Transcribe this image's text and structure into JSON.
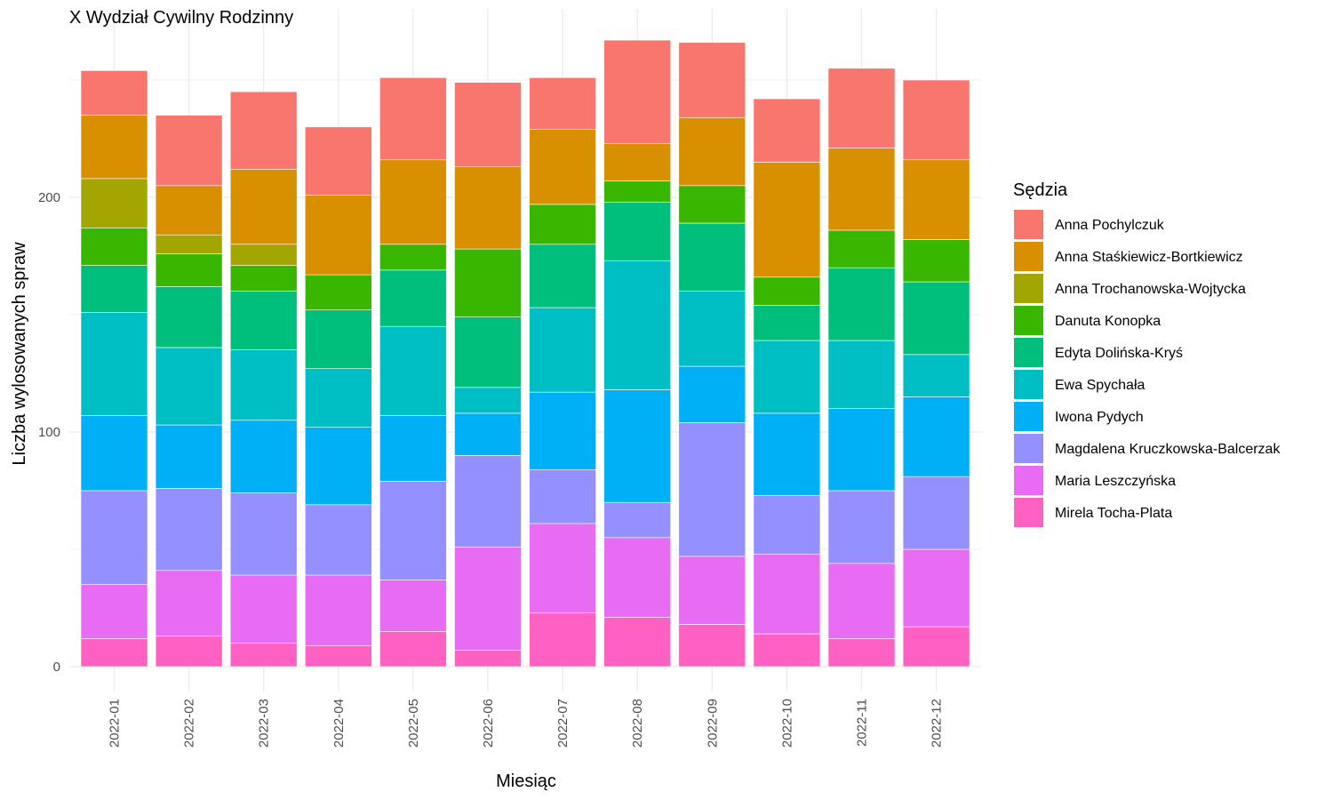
{
  "chart_data": {
    "type": "bar",
    "stacked": true,
    "title": "X Wydział Cywilny Rodzinny",
    "xlabel": "Miesiąc",
    "ylabel": "Liczba wylosowanych spraw",
    "ylim": [
      0,
      265
    ],
    "yticks": [
      0,
      100,
      200
    ],
    "grid": true,
    "legend_title": "Sędzia",
    "legend_position": "right",
    "categories": [
      "2022-01",
      "2022-02",
      "2022-03",
      "2022-04",
      "2022-05",
      "2022-06",
      "2022-07",
      "2022-08",
      "2022-09",
      "2022-10",
      "2022-11",
      "2022-12"
    ],
    "series": [
      {
        "name": "Mirela Tocha-Plata",
        "color": "#FF61C3",
        "values": [
          12,
          13,
          10,
          9,
          15,
          7,
          23,
          21,
          18,
          14,
          12,
          17
        ]
      },
      {
        "name": "Maria Leszczyńska",
        "color": "#E76BF3",
        "values": [
          23,
          28,
          29,
          30,
          22,
          44,
          38,
          34,
          29,
          34,
          32,
          33
        ]
      },
      {
        "name": "Magdalena Kruczkowska-Balcerzak",
        "color": "#9590FF",
        "values": [
          40,
          35,
          35,
          30,
          42,
          39,
          23,
          15,
          57,
          25,
          31,
          31
        ]
      },
      {
        "name": "Iwona Pydych",
        "color": "#00B0F6",
        "values": [
          32,
          27,
          31,
          33,
          28,
          18,
          33,
          48,
          24,
          35,
          35,
          34
        ]
      },
      {
        "name": "Ewa Spychała",
        "color": "#00BFC4",
        "values": [
          44,
          33,
          30,
          25,
          38,
          11,
          36,
          55,
          32,
          31,
          29,
          18
        ]
      },
      {
        "name": "Edyta Dolińska-Kryś",
        "color": "#00BF7D",
        "values": [
          20,
          26,
          25,
          25,
          24,
          30,
          27,
          25,
          29,
          15,
          31,
          31
        ]
      },
      {
        "name": "Danuta Konopka",
        "color": "#39B600",
        "values": [
          16,
          14,
          11,
          15,
          11,
          29,
          17,
          9,
          16,
          12,
          16,
          18
        ]
      },
      {
        "name": "Anna Trochanowska-Wojtycka",
        "color": "#A3A500",
        "values": [
          21,
          8,
          9,
          0,
          0,
          0,
          0,
          0,
          0,
          0,
          0,
          0
        ]
      },
      {
        "name": "Anna Staśkiewicz-Bortkiewicz",
        "color": "#D89000",
        "values": [
          27,
          21,
          32,
          34,
          36,
          35,
          32,
          16,
          29,
          49,
          35,
          34
        ]
      },
      {
        "name": "Anna Pochylczuk",
        "color": "#F8766D",
        "values": [
          19,
          30,
          33,
          29,
          35,
          36,
          22,
          44,
          32,
          27,
          34,
          34
        ]
      }
    ]
  }
}
